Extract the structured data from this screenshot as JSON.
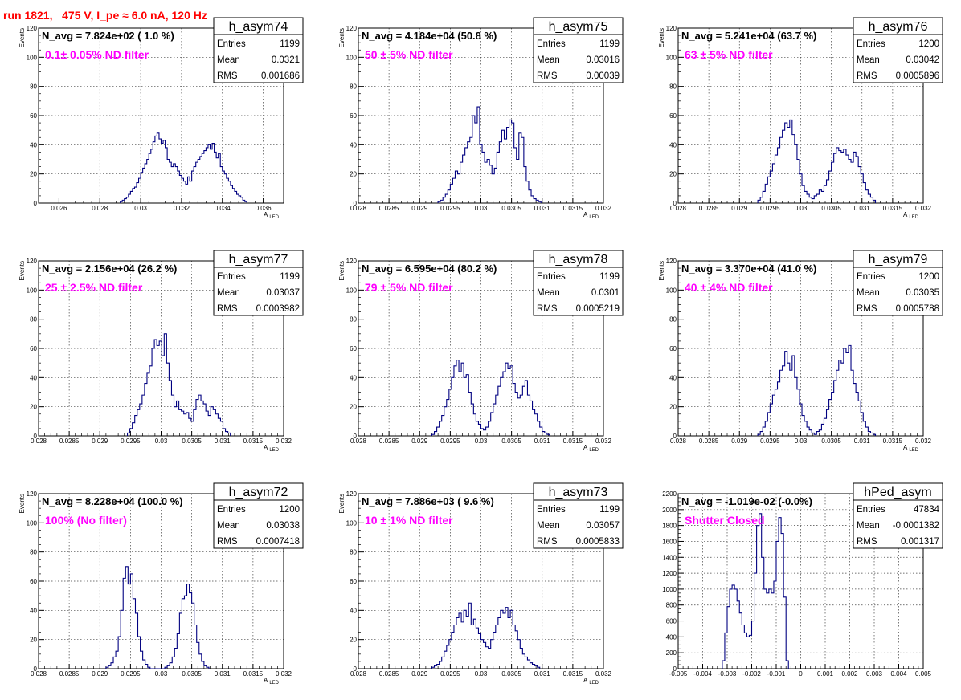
{
  "title": "run 1821,   475 V, I_pe ≈ 6.0 nA, 120 Hz",
  "chart_data": [
    {
      "type": "bar",
      "name": "h_asym74",
      "navg": "N_avg = 7.824e+02 ( 1.0 %)",
      "filter": "0.1± 0.05% ND filter",
      "stats": {
        "entries": "1199",
        "mean": "0.0321",
        "rms": "0.001686"
      },
      "stats_labels": [
        "Entries",
        "Mean",
        "RMS"
      ],
      "xlabel": "A_LED",
      "ylabel": "Events",
      "xlim": [
        0.025,
        0.037
      ],
      "ylim": [
        0,
        120
      ],
      "xticks": [
        0.026,
        0.028,
        0.03,
        0.032,
        0.034,
        0.036
      ],
      "xticklabels": [
        "0.026",
        "0.028",
        "0.03",
        "0.032",
        "0.034",
        "0.036"
      ],
      "yticks": [
        0,
        20,
        40,
        60,
        80,
        100,
        120
      ],
      "bins": {
        "start": 0.029,
        "width": 0.0001,
        "values": [
          1,
          2,
          3,
          4,
          6,
          8,
          10,
          11,
          14,
          17,
          21,
          24,
          27,
          30,
          34,
          37,
          42,
          46,
          48,
          44,
          41,
          43,
          38,
          30,
          28,
          25,
          27,
          25,
          22,
          19,
          17,
          15,
          13,
          18,
          15,
          22,
          25,
          28,
          30,
          32,
          34,
          36,
          38,
          40,
          37,
          41,
          35,
          31,
          34,
          25,
          22,
          20,
          17,
          15,
          12,
          10,
          8,
          6,
          5,
          4,
          2,
          1
        ]
      }
    },
    {
      "type": "bar",
      "name": "h_asym75",
      "navg": "N_avg = 4.184e+04 (50.8 %)",
      "filter": "50 ± 5% ND filter",
      "stats": {
        "entries": "1199",
        "mean": "0.03016",
        "rms": "0.00039"
      },
      "stats_labels": [
        "Entries",
        "Mean",
        "RMS"
      ],
      "xlabel": "A_LED",
      "ylabel": "Events",
      "xlim": [
        0.028,
        0.032
      ],
      "ylim": [
        0,
        120
      ],
      "xticks": [
        0.028,
        0.0285,
        0.029,
        0.0295,
        0.03,
        0.0305,
        0.031,
        0.0315,
        0.032
      ],
      "xticklabels": [
        "0.028",
        "0.0285",
        "0.029",
        "0.0295",
        "0.03",
        "0.0305",
        "0.031",
        "0.0315",
        "0.032"
      ],
      "yticks": [
        0,
        20,
        40,
        60,
        80,
        100,
        120
      ],
      "bins": {
        "start": 0.0293,
        "width": 4e-05,
        "values": [
          1,
          2,
          4,
          6,
          9,
          13,
          17,
          22,
          20,
          28,
          33,
          38,
          42,
          45,
          60,
          55,
          66,
          40,
          35,
          28,
          30,
          26,
          20,
          24,
          35,
          42,
          50,
          44,
          52,
          57,
          55,
          38,
          30,
          48,
          45,
          25,
          15,
          9,
          5,
          3,
          2,
          1
        ]
      }
    },
    {
      "type": "bar",
      "name": "h_asym76",
      "navg": "N_avg = 5.241e+04 (63.7 %)",
      "filter": "63 ± 5% ND filter",
      "stats": {
        "entries": "1200",
        "mean": "0.03042",
        "rms": "0.0005896"
      },
      "stats_labels": [
        "Entries",
        "Mean",
        "RMS"
      ],
      "xlabel": "A_LED",
      "ylabel": "Events",
      "xlim": [
        0.028,
        0.032
      ],
      "ylim": [
        0,
        120
      ],
      "xticks": [
        0.028,
        0.0285,
        0.029,
        0.0295,
        0.03,
        0.0305,
        0.031,
        0.0315,
        0.032
      ],
      "xticklabels": [
        "0.028",
        "0.0285",
        "0.029",
        "0.0295",
        "0.03",
        "0.0305",
        "0.031",
        "0.0315",
        "0.032"
      ],
      "yticks": [
        0,
        20,
        40,
        60,
        80,
        100,
        120
      ],
      "bins": {
        "start": 0.0293,
        "width": 4e-05,
        "values": [
          2,
          4,
          8,
          13,
          18,
          22,
          27,
          33,
          38,
          45,
          50,
          55,
          52,
          57,
          47,
          40,
          30,
          20,
          12,
          8,
          6,
          4,
          3,
          5,
          6,
          9,
          8,
          12,
          16,
          22,
          28,
          34,
          38,
          36,
          35,
          37,
          33,
          30,
          28,
          35,
          32,
          25,
          20,
          14,
          9,
          6,
          4,
          2
        ]
      }
    },
    {
      "type": "bar",
      "name": "h_asym77",
      "navg": "N_avg = 2.156e+04 (26.2 %)",
      "filter": "25 ± 2.5% ND filter",
      "stats": {
        "entries": "1199",
        "mean": "0.03037",
        "rms": "0.0003982"
      },
      "stats_labels": [
        "Entries",
        "Mean",
        "RMS"
      ],
      "xlabel": "A_LED",
      "ylabel": "Events",
      "xlim": [
        0.028,
        0.032
      ],
      "ylim": [
        0,
        120
      ],
      "xticks": [
        0.028,
        0.0285,
        0.029,
        0.0295,
        0.03,
        0.0305,
        0.031,
        0.0315,
        0.032
      ],
      "xticklabels": [
        "0.028",
        "0.0285",
        "0.029",
        "0.0295",
        "0.03",
        "0.0305",
        "0.031",
        "0.0315",
        "0.032"
      ],
      "yticks": [
        0,
        20,
        40,
        60,
        80,
        100,
        120
      ],
      "bins": {
        "start": 0.02945,
        "width": 4e-05,
        "values": [
          2,
          5,
          9,
          14,
          18,
          22,
          28,
          36,
          43,
          48,
          60,
          66,
          62,
          65,
          55,
          70,
          50,
          38,
          28,
          20,
          24,
          18,
          17,
          15,
          16,
          12,
          10,
          18,
          25,
          28,
          24,
          22,
          17,
          14,
          20,
          18,
          15,
          12,
          10,
          5,
          3,
          2
        ]
      }
    },
    {
      "type": "bar",
      "name": "h_asym78",
      "navg": "N_avg = 6.595e+04 (80.2 %)",
      "filter": "79 ± 5% ND filter",
      "stats": {
        "entries": "1199",
        "mean": "0.0301",
        "rms": "0.0005219"
      },
      "stats_labels": [
        "Entries",
        "Mean",
        "RMS"
      ],
      "xlabel": "A_LED",
      "ylabel": "Events",
      "xlim": [
        0.028,
        0.032
      ],
      "ylim": [
        0,
        120
      ],
      "xticks": [
        0.028,
        0.0285,
        0.029,
        0.0295,
        0.03,
        0.0305,
        0.031,
        0.0315,
        0.032
      ],
      "xticklabels": [
        "0.028",
        "0.0285",
        "0.029",
        "0.0295",
        "0.03",
        "0.0305",
        "0.031",
        "0.0315",
        "0.032"
      ],
      "yticks": [
        0,
        20,
        40,
        60,
        80,
        100,
        120
      ],
      "bins": {
        "start": 0.0292,
        "width": 4e-05,
        "values": [
          1,
          3,
          6,
          10,
          14,
          20,
          25,
          32,
          40,
          48,
          52,
          44,
          50,
          40,
          42,
          30,
          22,
          15,
          10,
          8,
          5,
          4,
          6,
          10,
          16,
          22,
          28,
          34,
          40,
          44,
          50,
          46,
          48,
          36,
          30,
          26,
          28,
          34,
          38,
          28,
          24,
          18,
          15,
          10,
          6,
          3,
          2,
          1
        ]
      }
    },
    {
      "type": "bar",
      "name": "h_asym79",
      "navg": "N_avg = 3.370e+04 (41.0 %)",
      "filter": "40 ± 4% ND filter",
      "stats": {
        "entries": "1200",
        "mean": "0.03035",
        "rms": "0.0005788"
      },
      "stats_labels": [
        "Entries",
        "Mean",
        "RMS"
      ],
      "xlabel": "A_LED",
      "ylabel": "Events",
      "xlim": [
        0.028,
        0.032
      ],
      "ylim": [
        0,
        120
      ],
      "xticks": [
        0.028,
        0.0285,
        0.029,
        0.0295,
        0.03,
        0.0305,
        0.031,
        0.0315,
        0.032
      ],
      "xticklabels": [
        "0.028",
        "0.0285",
        "0.029",
        "0.0295",
        "0.03",
        "0.0305",
        "0.031",
        "0.0315",
        "0.032"
      ],
      "yticks": [
        0,
        20,
        40,
        60,
        80,
        100,
        120
      ],
      "bins": {
        "start": 0.0293,
        "width": 4e-05,
        "values": [
          1,
          3,
          6,
          10,
          16,
          22,
          28,
          32,
          37,
          45,
          48,
          58,
          50,
          45,
          55,
          40,
          32,
          22,
          14,
          10,
          6,
          4,
          2,
          1,
          3,
          4,
          8,
          12,
          18,
          25,
          30,
          38,
          45,
          52,
          50,
          60,
          57,
          62,
          45,
          36,
          30,
          24,
          16,
          10,
          6,
          3,
          2,
          1
        ]
      }
    },
    {
      "type": "bar",
      "name": "h_asym72",
      "navg": "N_avg = 8.228e+04 (100.0 %)",
      "filter": "100% (No filter)",
      "stats": {
        "entries": "1200",
        "mean": "0.03038",
        "rms": "0.0007418"
      },
      "stats_labels": [
        "Entries",
        "Mean",
        "RMS"
      ],
      "xlabel": "A_LED",
      "ylabel": "Events",
      "xlim": [
        0.028,
        0.032
      ],
      "ylim": [
        0,
        120
      ],
      "xticks": [
        0.028,
        0.0285,
        0.029,
        0.0295,
        0.03,
        0.0305,
        0.031,
        0.0315,
        0.032
      ],
      "xticklabels": [
        "0.028",
        "0.0285",
        "0.029",
        "0.0295",
        "0.03",
        "0.0305",
        "0.031",
        "0.0315",
        "0.032"
      ],
      "yticks": [
        0,
        20,
        40,
        60,
        80,
        100,
        120
      ],
      "bins": {
        "start": 0.0291,
        "width": 4e-05,
        "values": [
          1,
          2,
          4,
          8,
          12,
          22,
          40,
          62,
          70,
          58,
          65,
          48,
          38,
          22,
          12,
          6,
          3,
          1,
          0,
          0,
          0,
          0,
          0,
          0,
          1,
          2,
          4,
          8,
          14,
          24,
          38,
          48,
          50,
          58,
          52,
          45,
          30,
          18,
          10,
          5,
          2,
          1
        ]
      }
    },
    {
      "type": "bar",
      "name": "h_asym73",
      "navg": "N_avg = 7.886e+03 ( 9.6 %)",
      "filter": "10 ± 1% ND filter",
      "stats": {
        "entries": "1199",
        "mean": "0.03057",
        "rms": "0.0005833"
      },
      "stats_labels": [
        "Entries",
        "Mean",
        "RMS"
      ],
      "xlabel": "A_LED",
      "ylabel": "Events",
      "xlim": [
        0.028,
        0.032
      ],
      "ylim": [
        0,
        120
      ],
      "xticks": [
        0.028,
        0.0285,
        0.029,
        0.0295,
        0.03,
        0.0305,
        0.031,
        0.0315,
        0.032
      ],
      "xticklabels": [
        "0.028",
        "0.0285",
        "0.029",
        "0.0295",
        "0.03",
        "0.0305",
        "0.031",
        "0.0315",
        "0.032"
      ],
      "yticks": [
        0,
        20,
        40,
        60,
        80,
        100,
        120
      ],
      "bins": {
        "start": 0.0292,
        "width": 4e-05,
        "values": [
          1,
          2,
          3,
          5,
          8,
          12,
          16,
          20,
          25,
          30,
          35,
          38,
          32,
          40,
          36,
          45,
          30,
          34,
          28,
          24,
          20,
          18,
          15,
          14,
          20,
          25,
          30,
          35,
          40,
          38,
          42,
          35,
          40,
          30,
          26,
          20,
          14,
          10,
          8,
          6,
          4,
          3,
          2,
          1
        ]
      }
    },
    {
      "type": "bar",
      "name": "hPed_asym",
      "navg": "N_avg = -1.019e-02 (-0.0%)",
      "filter": "Shutter Closed",
      "stats": {
        "entries": "47834",
        "mean": "-0.0001382",
        "rms": "0.001317"
      },
      "stats_labels": [
        "Entries",
        "Mean",
        "RMS"
      ],
      "xlabel": "",
      "ylabel": "",
      "xlim": [
        -0.005,
        0.005
      ],
      "ylim": [
        0,
        2200
      ],
      "xticks": [
        -0.005,
        -0.004,
        -0.003,
        -0.002,
        -0.001,
        0,
        0.001,
        0.002,
        0.003,
        0.004,
        0.005
      ],
      "xticklabels": [
        "-0.005",
        "-0.004",
        "-0.003",
        "-0.002",
        "-0.001",
        "0",
        "0.001",
        "0.002",
        "0.003",
        "0.004",
        "0.005"
      ],
      "yticks": [
        0,
        200,
        400,
        600,
        800,
        1000,
        1200,
        1400,
        1600,
        1800,
        2000,
        2200
      ],
      "bins": {
        "start": -0.0032,
        "width": 0.0001,
        "values": [
          100,
          450,
          780,
          1000,
          1050,
          1000,
          850,
          700,
          550,
          450,
          400,
          420,
          600,
          1200,
          1800,
          1950,
          1400,
          1000,
          950,
          1000,
          950,
          1100,
          1600,
          1900,
          1700,
          900,
          100
        ]
      }
    }
  ]
}
